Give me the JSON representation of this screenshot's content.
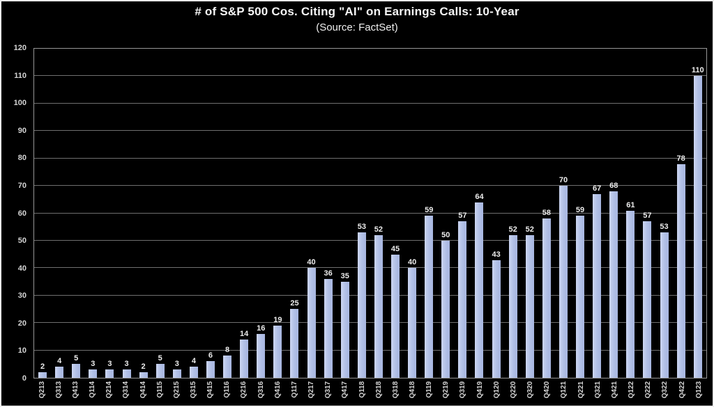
{
  "chart_data": {
    "type": "bar",
    "title": "# of S&P 500 Cos. Citing \"AI\" on Earnings Calls: 10-Year",
    "subtitle": "(Source: FactSet)",
    "categories": [
      "Q213",
      "Q313",
      "Q413",
      "Q114",
      "Q214",
      "Q314",
      "Q414",
      "Q115",
      "Q215",
      "Q315",
      "Q415",
      "Q116",
      "Q216",
      "Q316",
      "Q416",
      "Q117",
      "Q217",
      "Q317",
      "Q417",
      "Q118",
      "Q218",
      "Q318",
      "Q418",
      "Q119",
      "Q219",
      "Q319",
      "Q419",
      "Q120",
      "Q220",
      "Q320",
      "Q420",
      "Q121",
      "Q221",
      "Q321",
      "Q421",
      "Q122",
      "Q222",
      "Q322",
      "Q422",
      "Q123"
    ],
    "values": [
      2,
      4,
      5,
      3,
      3,
      3,
      2,
      5,
      3,
      4,
      6,
      8,
      14,
      16,
      19,
      25,
      40,
      36,
      35,
      53,
      52,
      45,
      40,
      59,
      50,
      57,
      64,
      43,
      52,
      52,
      58,
      70,
      59,
      67,
      68,
      61,
      57,
      53,
      78,
      110
    ],
    "xlabel": "",
    "ylabel": "",
    "ylim": [
      0,
      120
    ],
    "ytick_step": 10,
    "grid": "horizontal",
    "legend": "none",
    "colors": {
      "background": "#000000",
      "frame_border": "#ededed",
      "bar_fill": "#b2c0e6",
      "bar_fill_highlight": "#ccd6f2",
      "gridline": "#6f6f6f",
      "plot_border": "#969696",
      "title_text": "#f5f5f5",
      "tick_text": "#d4d4d4",
      "value_label_text": "#ededed"
    }
  }
}
